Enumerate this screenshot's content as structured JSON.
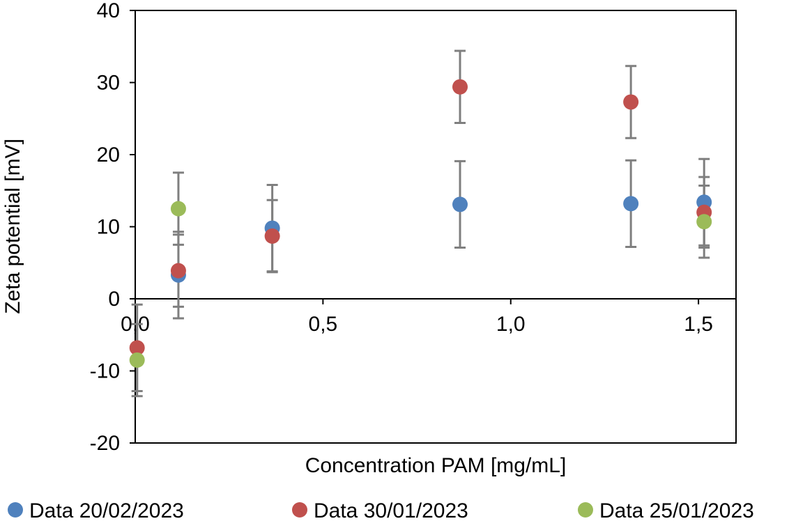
{
  "chart_data": {
    "type": "scatter",
    "xlabel": "Concentration PAM [mg/mL]",
    "ylabel": "Zeta potential [mV]",
    "xlim": [
      0,
      1.6
    ],
    "ylim": [
      -20,
      40
    ],
    "x_ticks": [
      0,
      0.5,
      1.0,
      1.5
    ],
    "x_tick_labels": [
      "0,0",
      "0,5",
      "1,0",
      "1,5"
    ],
    "y_ticks": [
      -20,
      -10,
      0,
      10,
      20,
      30,
      40
    ],
    "y_tick_labels": [
      "-20",
      "-10",
      "0",
      "10",
      "20",
      "30",
      "40"
    ],
    "grid": false,
    "legend_position": "bottom",
    "error_bar_color": "#7f7f7f",
    "series": [
      {
        "name": "Data 20/02/2023",
        "color": "#4f81bd",
        "points": [
          {
            "x": 0.115,
            "y": 3.3,
            "err": 6.0
          },
          {
            "x": 0.365,
            "y": 9.8,
            "err": 6.0
          },
          {
            "x": 0.865,
            "y": 13.1,
            "err": 6.0
          },
          {
            "x": 1.32,
            "y": 13.2,
            "err": 6.0
          },
          {
            "x": 1.515,
            "y": 13.4,
            "err": 6.0
          }
        ]
      },
      {
        "name": "Data 30/01/2023",
        "color": "#c0504d",
        "points": [
          {
            "x": 0.005,
            "y": -6.8,
            "err": 6.0
          },
          {
            "x": 0.115,
            "y": 3.9,
            "err": 5.0
          },
          {
            "x": 0.365,
            "y": 8.7,
            "err": 5.0
          },
          {
            "x": 0.865,
            "y": 29.4,
            "err": 5.0
          },
          {
            "x": 1.32,
            "y": 27.3,
            "err": 5.0
          },
          {
            "x": 1.515,
            "y": 12.0,
            "err": 4.9
          }
        ]
      },
      {
        "name": "Data 25/01/2023",
        "color": "#9bbb59",
        "points": [
          {
            "x": 0.005,
            "y": -8.5,
            "err": 5.0
          },
          {
            "x": 0.115,
            "y": 12.5,
            "err": 5.0
          },
          {
            "x": 1.515,
            "y": 10.7,
            "err": 5.0
          }
        ]
      }
    ]
  }
}
